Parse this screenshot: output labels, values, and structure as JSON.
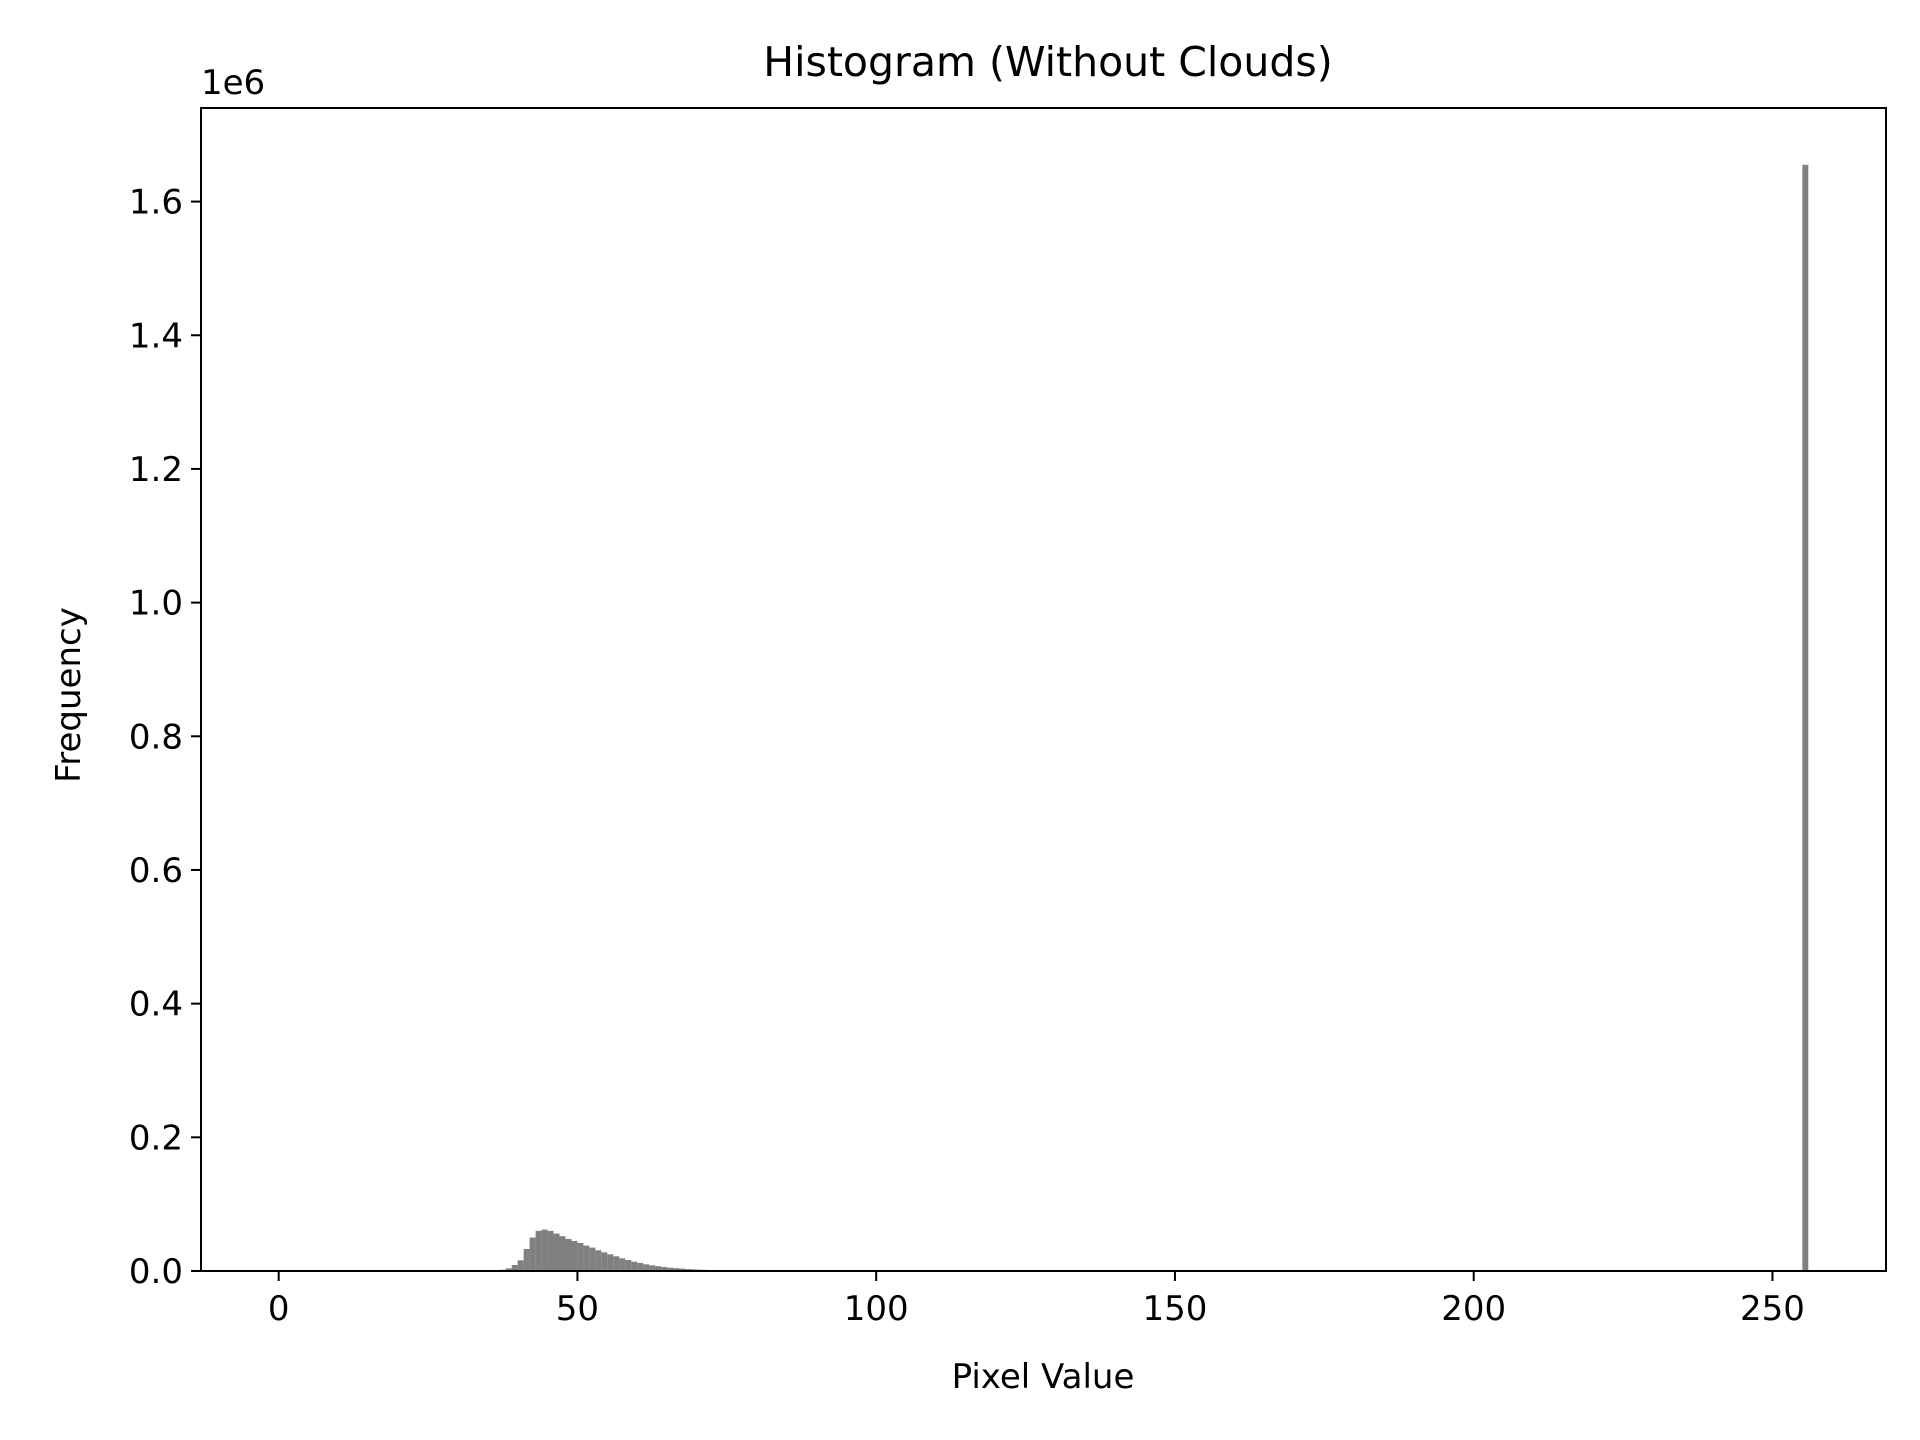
{
  "chart_data": {
    "type": "bar",
    "title": "Histogram (Without Clouds)",
    "xlabel": "Pixel Value",
    "ylabel": "Frequency",
    "y_offset_label": "1e6",
    "y_scale": 1000000,
    "xlim": [
      -13,
      269
    ],
    "ylim": [
      0,
      1740000
    ],
    "x_ticks": [
      0,
      50,
      100,
      150,
      200,
      250
    ],
    "x_tick_labels": [
      "0",
      "50",
      "100",
      "150",
      "200",
      "250"
    ],
    "y_ticks": [
      0,
      200000,
      400000,
      600000,
      800000,
      1000000,
      1200000,
      1400000,
      1600000
    ],
    "y_tick_labels": [
      "0.0",
      "0.2",
      "0.4",
      "0.6",
      "0.8",
      "1.0",
      "1.2",
      "1.4",
      "1.6"
    ],
    "bar_color": "#808080",
    "bin_width": 1,
    "grid": false,
    "legend": "none",
    "x": [
      37,
      38,
      39,
      40,
      41,
      42,
      43,
      44,
      45,
      46,
      47,
      48,
      49,
      50,
      51,
      52,
      53,
      54,
      55,
      56,
      57,
      58,
      59,
      60,
      61,
      62,
      63,
      64,
      65,
      66,
      67,
      68,
      69,
      70,
      71,
      72,
      73,
      74,
      75,
      76,
      77,
      78,
      79,
      80,
      81,
      82,
      83,
      84,
      255
    ],
    "values": [
      2000,
      4000,
      9000,
      16000,
      33000,
      50000,
      60000,
      62000,
      60000,
      56000,
      52000,
      48000,
      45000,
      42000,
      38000,
      35000,
      31000,
      28000,
      25000,
      22000,
      19000,
      16500,
      14000,
      12000,
      10000,
      8500,
      7200,
      6000,
      5000,
      4300,
      3600,
      3000,
      2500,
      2100,
      1800,
      1500,
      1200,
      1000,
      900,
      800,
      700,
      600,
      500,
      400,
      300,
      250,
      200,
      150,
      1655000
    ]
  }
}
